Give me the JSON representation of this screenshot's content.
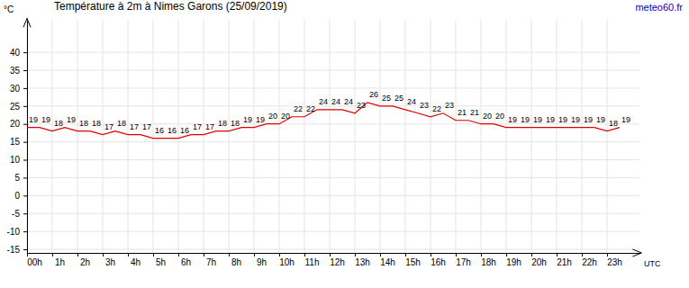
{
  "chart_data": {
    "type": "line",
    "title": "Température à 2m à Nimes Garons (25/09/2019)",
    "ylabel": "°C",
    "xlabel": "UTC",
    "annotations": [
      "meteo60.fr"
    ],
    "x": [
      0,
      0.5,
      1,
      1.5,
      2,
      2.5,
      3,
      3.5,
      4,
      4.5,
      5,
      5.5,
      6,
      6.5,
      7,
      7.5,
      8,
      8.5,
      9,
      9.5,
      10,
      10.5,
      11,
      11.5,
      12,
      12.5,
      13,
      13.5,
      14,
      14.5,
      15,
      15.5,
      16,
      16.5,
      17,
      17.5,
      18,
      18.5,
      19,
      19.5,
      20,
      20.5,
      21,
      21.5,
      22,
      22.5,
      23,
      23.5
    ],
    "values": [
      19,
      19,
      18,
      19,
      18,
      18,
      17,
      18,
      17,
      17,
      16,
      16,
      16,
      17,
      17,
      18,
      18,
      19,
      19,
      20,
      20,
      22,
      22,
      24,
      24,
      24,
      23,
      26,
      25,
      25,
      24,
      23,
      22,
      23,
      21,
      21,
      20,
      20,
      19,
      19,
      19,
      19,
      19,
      19,
      19,
      19,
      18,
      19
    ],
    "color": "#dd0000",
    "xlim": [
      0,
      24.3
    ],
    "xticks": [
      {
        "value": 0,
        "label": "00h"
      },
      {
        "value": 1,
        "label": "1h"
      },
      {
        "value": 2,
        "label": "2h"
      },
      {
        "value": 3,
        "label": "3h"
      },
      {
        "value": 4,
        "label": "4h"
      },
      {
        "value": 5,
        "label": "5h"
      },
      {
        "value": 6,
        "label": "6h"
      },
      {
        "value": 7,
        "label": "7h"
      },
      {
        "value": 8,
        "label": "8h"
      },
      {
        "value": 9,
        "label": "9h"
      },
      {
        "value": 10,
        "label": "10h"
      },
      {
        "value": 11,
        "label": "11h"
      },
      {
        "value": 12,
        "label": "12h"
      },
      {
        "value": 13,
        "label": "13h"
      },
      {
        "value": 14,
        "label": "14h"
      },
      {
        "value": 15,
        "label": "15h"
      },
      {
        "value": 16,
        "label": "16h"
      },
      {
        "value": 17,
        "label": "17h"
      },
      {
        "value": 18,
        "label": "18h"
      },
      {
        "value": 19,
        "label": "19h"
      },
      {
        "value": 20,
        "label": "20h"
      },
      {
        "value": 21,
        "label": "21h"
      },
      {
        "value": 22,
        "label": "22h"
      },
      {
        "value": 23,
        "label": "23h"
      }
    ],
    "ylim": [
      -16,
      49
    ],
    "yticks": [
      -15,
      -10,
      -5,
      0,
      5,
      10,
      15,
      20,
      25,
      30,
      35,
      40
    ],
    "grid": true,
    "data_labels": true
  }
}
